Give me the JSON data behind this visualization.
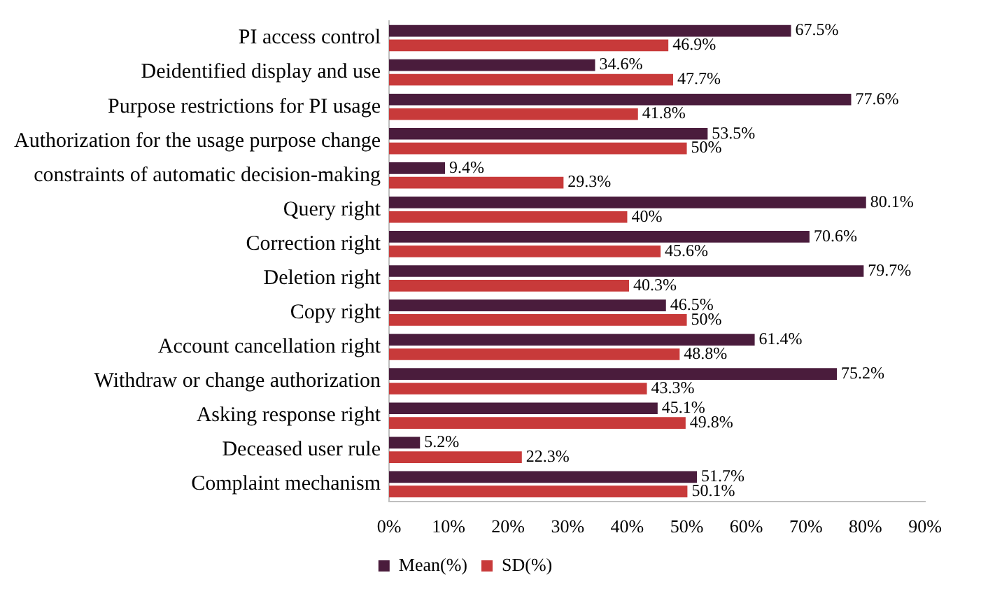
{
  "chart_data": {
    "type": "bar",
    "orientation": "horizontal",
    "categories": [
      "PI access control",
      "Deidentified display and use",
      "Purpose restrictions for PI usage",
      "Authorization for the usage purpose change",
      "constraints of automatic decision-making",
      "Query right",
      "Correction right",
      "Deletion right",
      "Copy right",
      "Account cancellation right",
      "Withdraw or change authorization",
      "Asking response right",
      "Deceased user rule",
      "Complaint mechanism"
    ],
    "series": [
      {
        "name": "Mean(%)",
        "color": "#4a1c3c",
        "values": [
          67.5,
          34.6,
          77.6,
          53.5,
          9.4,
          80.1,
          70.6,
          79.7,
          46.5,
          61.4,
          75.2,
          45.1,
          5.2,
          51.7
        ],
        "value_labels": [
          "67.5%",
          "34.6%",
          "77.6%",
          "53.5%",
          "9.4%",
          "80.1%",
          "70.6%",
          "79.7%",
          "46.5%",
          "61.4%",
          "75.2%",
          "45.1%",
          "5.2%",
          "51.7%"
        ]
      },
      {
        "name": "SD(%)",
        "color": "#c83a3a",
        "values": [
          46.9,
          47.7,
          41.8,
          50,
          29.3,
          40,
          45.6,
          40.3,
          50,
          48.8,
          43.3,
          49.8,
          22.3,
          50.1
        ],
        "value_labels": [
          "46.9%",
          "47.7%",
          "41.8%",
          "50%",
          "29.3%",
          "40%",
          "45.6%",
          "40.3%",
          "50%",
          "48.8%",
          "43.3%",
          "49.8%",
          "22.3%",
          "50.1%"
        ]
      }
    ],
    "xlim": [
      0,
      90
    ],
    "xticks": [
      {
        "value": 0,
        "label": "0%"
      },
      {
        "value": 10,
        "label": "10%"
      },
      {
        "value": 20,
        "label": "20%"
      },
      {
        "value": 30,
        "label": "30%"
      },
      {
        "value": 40,
        "label": "40%"
      },
      {
        "value": 50,
        "label": "50%"
      },
      {
        "value": 60,
        "label": "60%"
      },
      {
        "value": 70,
        "label": "70%"
      },
      {
        "value": 80,
        "label": "80%"
      },
      {
        "value": 90,
        "label": "90%"
      }
    ],
    "grid": false,
    "legend": "bottom"
  }
}
